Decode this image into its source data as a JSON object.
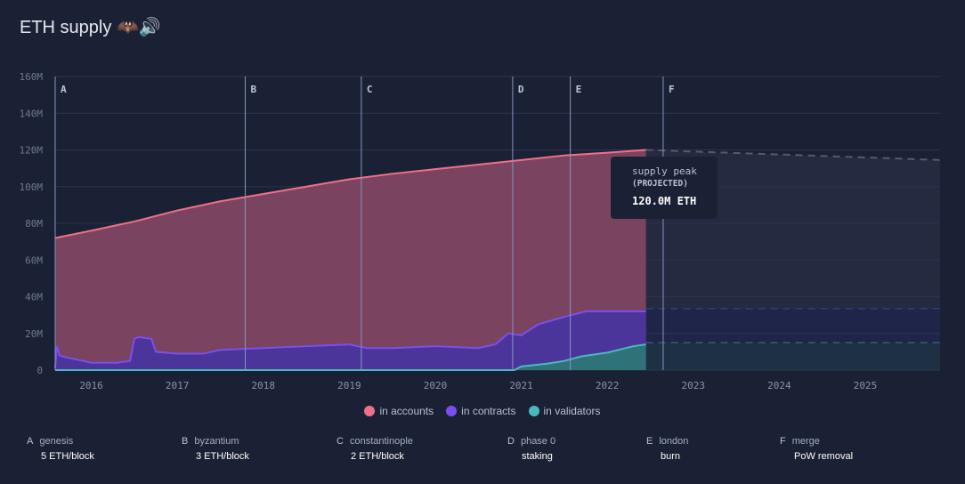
{
  "header": {
    "title": "ETH supply",
    "icons": [
      "bat-icon",
      "speaker-icon"
    ]
  },
  "colors": {
    "accounts": "#f16f8a",
    "contracts": "#7b4ef0",
    "validators": "#4ab9bd"
  },
  "tooltip": {
    "line1": "supply peak",
    "line2": "(PROJECTED)",
    "value": "120.0M ETH"
  },
  "chart_data": {
    "type": "area",
    "title": "ETH supply",
    "ylim": [
      0,
      160
    ],
    "yticks": [
      {
        "v": 0,
        "label": "0"
      },
      {
        "v": 20,
        "label": "20M"
      },
      {
        "v": 40,
        "label": "40M"
      },
      {
        "v": 60,
        "label": "60M"
      },
      {
        "v": 80,
        "label": "80M"
      },
      {
        "v": 100,
        "label": "100M"
      },
      {
        "v": 120,
        "label": "120M"
      },
      {
        "v": 140,
        "label": "140M"
      },
      {
        "v": 160,
        "label": "160M"
      }
    ],
    "xlim": [
      2015.58,
      2025.87
    ],
    "xticks": [
      2016,
      2017,
      2018,
      2019,
      2020,
      2021,
      2022,
      2023,
      2024,
      2025
    ],
    "series": [
      {
        "name": "in accounts",
        "x": [
          2015.58,
          2016,
          2016.5,
          2017,
          2017.5,
          2018,
          2018.5,
          2019,
          2019.5,
          2020,
          2020.5,
          2021,
          2021.5,
          2022,
          2022.45
        ],
        "values": [
          72,
          76,
          81,
          87,
          92,
          96,
          100,
          104,
          107,
          109.5,
          112,
          114.5,
          117,
          118.5,
          120
        ]
      },
      {
        "name": "in contracts",
        "x": [
          2015.58,
          2015.6,
          2015.63,
          2015.7,
          2016,
          2016.3,
          2016.45,
          2016.5,
          2016.55,
          2016.7,
          2016.75,
          2017,
          2017.3,
          2017.5,
          2018,
          2018.5,
          2019,
          2019.2,
          2019.5,
          2020,
          2020.5,
          2020.7,
          2020.85,
          2021,
          2021.2,
          2021.5,
          2021.75,
          2022,
          2022.45
        ],
        "values": [
          1,
          13,
          8,
          7,
          4,
          4,
          5,
          17,
          18,
          17,
          10,
          9,
          9,
          11,
          12,
          13,
          14,
          12,
          12,
          13,
          12,
          14,
          20,
          19,
          25,
          29,
          32,
          32,
          32
        ]
      },
      {
        "name": "in validators",
        "x": [
          2015.58,
          2020.92,
          2021,
          2021.3,
          2021.5,
          2021.7,
          2022,
          2022.3,
          2022.45
        ],
        "values": [
          0,
          0,
          2,
          3.5,
          5,
          7.5,
          9.5,
          13,
          14
        ]
      }
    ],
    "projection": {
      "x": [
        2022.45,
        2025.87
      ],
      "total": [
        120,
        114.5
      ],
      "contracts": [
        33.5,
        33.5
      ],
      "validators": [
        15,
        15
      ]
    },
    "events": [
      {
        "key": "A",
        "name": "genesis",
        "desc": "5 ETH/block",
        "x": 2015.58
      },
      {
        "key": "B",
        "name": "byzantium",
        "desc": "3 ETH/block",
        "x": 2017.79
      },
      {
        "key": "C",
        "name": "constantinople",
        "desc": "2 ETH/block",
        "x": 2019.14
      },
      {
        "key": "D",
        "name": "phase 0",
        "desc": "staking",
        "x": 2020.9
      },
      {
        "key": "E",
        "name": "london",
        "desc": "burn",
        "x": 2021.57
      },
      {
        "key": "F",
        "name": "merge",
        "desc": "PoW removal",
        "x": 2022.65
      }
    ],
    "legend": [
      "in accounts",
      "in contracts",
      "in validators"
    ]
  }
}
